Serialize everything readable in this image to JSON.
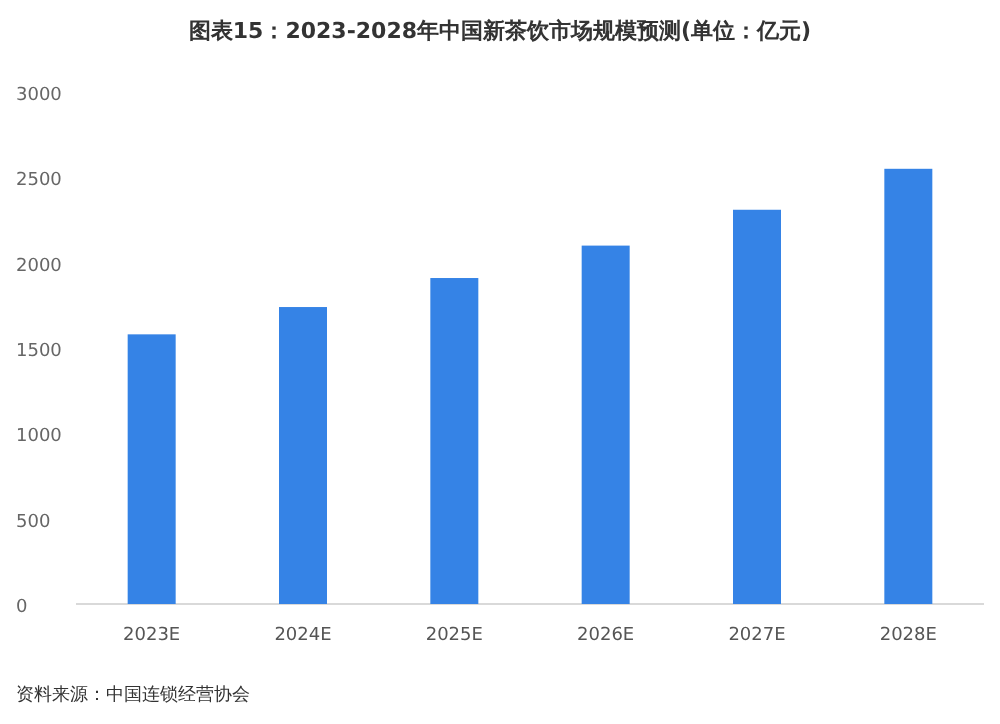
{
  "chart_data": {
    "type": "bar",
    "title": "图表15：2023-2028年中国新茶饮市场规模预测(单位：亿元)",
    "categories": [
      "2023E",
      "2024E",
      "2025E",
      "2026E",
      "2027E",
      "2028E"
    ],
    "values": [
      1580,
      1740,
      1910,
      2100,
      2310,
      2550
    ],
    "color": "#3583e6",
    "ylim": [
      0,
      3000
    ],
    "yticks": [
      0,
      500,
      1000,
      1500,
      2000,
      2500,
      3000
    ],
    "grid": false,
    "annotations": [
      "资料来源：中国连锁经营协会"
    ]
  }
}
